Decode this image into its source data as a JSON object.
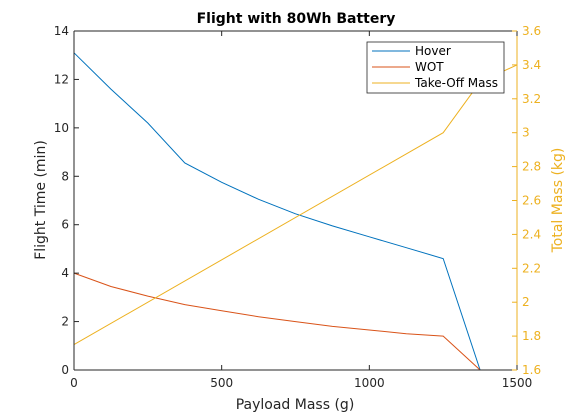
{
  "chart_data": {
    "type": "line",
    "title": "Flight with 80Wh Battery",
    "xlabel": "Payload Mass (g)",
    "ylabel_left": "Flight Time (min)",
    "ylabel_right": "Total Mass (kg)",
    "xlim": [
      0,
      1500
    ],
    "ylim_left": [
      0,
      14
    ],
    "ylim_right": [
      1.6,
      3.6
    ],
    "xticks": [
      0,
      500,
      1000,
      1500
    ],
    "yticks_left": [
      0,
      2,
      4,
      6,
      8,
      10,
      12,
      14
    ],
    "yticks_right": [
      1.6,
      1.8,
      2,
      2.2,
      2.4,
      2.6,
      2.8,
      3,
      3.2,
      3.4,
      3.6
    ],
    "grid": false,
    "legend_position": "top-right",
    "series": [
      {
        "name": "Hover",
        "axis": "left",
        "color": "#0072BD",
        "x": [
          0,
          125,
          250,
          375,
          500,
          625,
          750,
          875,
          1000,
          1125,
          1250,
          1375
        ],
        "y": [
          13.1,
          11.6,
          10.2,
          8.55,
          7.75,
          7.05,
          6.45,
          5.95,
          5.5,
          5.05,
          4.6,
          0
        ]
      },
      {
        "name": "WOT",
        "axis": "left",
        "color": "#D95319",
        "x": [
          0,
          125,
          250,
          375,
          500,
          625,
          750,
          875,
          1000,
          1125,
          1250,
          1375,
          1500
        ],
        "y": [
          4.0,
          3.45,
          3.05,
          2.7,
          2.45,
          2.2,
          2.0,
          1.8,
          1.65,
          1.5,
          1.4,
          0,
          0
        ]
      },
      {
        "name": "Take-Off Mass",
        "axis": "right",
        "color": "#EDB120",
        "x": [
          0,
          1250,
          1375,
          1500
        ],
        "y": [
          1.75,
          3.0,
          3.3,
          3.4
        ]
      }
    ]
  }
}
